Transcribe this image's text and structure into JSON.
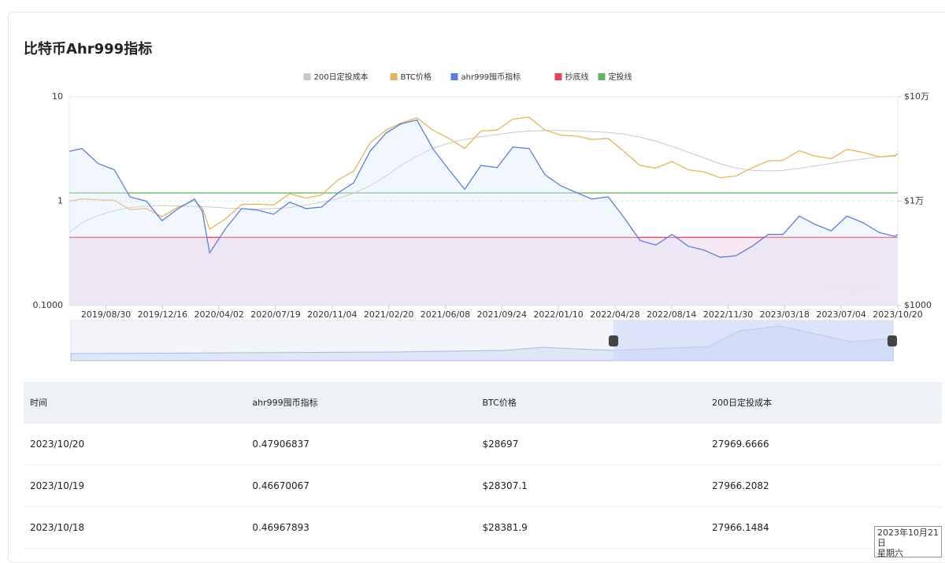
{
  "page_title": "比特币Ahr999指标",
  "chart_data": {
    "type": "line",
    "x": [
      "2019/06/21",
      "2019/07/15",
      "2019/08/15",
      "2019/09/15",
      "2019/10/15",
      "2019/11/15",
      "2019/12/15",
      "2020/01/15",
      "2020/02/15",
      "2020/03/01",
      "2020/03/15",
      "2020/04/15",
      "2020/05/15",
      "2020/06/15",
      "2020/07/15",
      "2020/08/15",
      "2020/09/15",
      "2020/10/15",
      "2020/11/15",
      "2020/12/15",
      "2021/01/15",
      "2021/02/15",
      "2021/03/15",
      "2021/04/15",
      "2021/05/15",
      "2021/06/15",
      "2021/07/15",
      "2021/08/15",
      "2021/09/15",
      "2021/10/15",
      "2021/11/15",
      "2021/12/15",
      "2022/01/15",
      "2022/02/15",
      "2022/03/15",
      "2022/04/15",
      "2022/05/15",
      "2022/06/15",
      "2022/07/15",
      "2022/08/15",
      "2022/09/15",
      "2022/10/15",
      "2022/11/15",
      "2022/12/15",
      "2023/01/15",
      "2023/02/15",
      "2023/03/15",
      "2023/04/15",
      "2023/05/15",
      "2023/06/15",
      "2023/07/15",
      "2023/08/15",
      "2023/09/15",
      "2023/10/15",
      "2023/10/20"
    ],
    "xticks": [
      "2019/08/30",
      "2019/12/16",
      "2020/04/02",
      "2020/07/19",
      "2020/11/04",
      "2021/02/20",
      "2021/06/08",
      "2021/09/24",
      "2022/01/10",
      "2022/04/28",
      "2022/08/14",
      "2022/11/30",
      "2023/03/18",
      "2023/07/04",
      "2023/10/20"
    ],
    "log_scale": true,
    "grid": true,
    "ylim": [
      0.1,
      10
    ],
    "yticks": [
      {
        "value": 0.1,
        "label": "0.1000"
      },
      1,
      10
    ],
    "y2lim": [
      1000,
      100000
    ],
    "y2ticks": [
      {
        "value": 1000,
        "label": "$1000"
      },
      {
        "value": 10000,
        "label": "$1万"
      },
      {
        "value": 100000,
        "label": "$10万"
      }
    ],
    "series": [
      {
        "name": "200日定投成本",
        "color": "#c8c8c8",
        "axis": "y2",
        "values": [
          5000,
          6200,
          7300,
          8100,
          8700,
          9000,
          9100,
          9000,
          8900,
          8900,
          8800,
          8600,
          8500,
          8400,
          8500,
          8700,
          9200,
          9800,
          10600,
          11900,
          14000,
          17500,
          22000,
          27000,
          32000,
          36000,
          39000,
          41500,
          43500,
          45500,
          47000,
          47500,
          47500,
          47000,
          46500,
          45500,
          44000,
          41000,
          37500,
          33500,
          29500,
          26000,
          22800,
          20800,
          19800,
          19500,
          19800,
          20600,
          21800,
          23000,
          24200,
          25400,
          26500,
          27700,
          27969.6666
        ]
      },
      {
        "name": "BTC价格",
        "color": "#e3b65c",
        "axis": "y2",
        "values": [
          10000,
          10500,
          10300,
          10200,
          8300,
          8500,
          7100,
          8800,
          10100,
          8600,
          5400,
          6800,
          9300,
          9400,
          9200,
          11800,
          10700,
          11500,
          16000,
          19400,
          36000,
          48000,
          56000,
          63000,
          48000,
          40000,
          32000,
          47000,
          48000,
          61000,
          64000,
          48000,
          43000,
          42000,
          39000,
          40000,
          30000,
          22000,
          20800,
          24000,
          20000,
          19100,
          16800,
          17400,
          20900,
          24300,
          24700,
          30400,
          27000,
          25600,
          31400,
          29300,
          26600,
          27100,
          28697
        ]
      },
      {
        "name": "ahr999囤币指标",
        "color": "#5b7fde",
        "values": [
          3.0,
          3.2,
          2.3,
          2.0,
          1.1,
          1.0,
          0.65,
          0.85,
          1.05,
          0.8,
          0.32,
          0.55,
          0.85,
          0.82,
          0.75,
          0.98,
          0.85,
          0.88,
          1.2,
          1.5,
          3.0,
          4.5,
          5.5,
          6.0,
          3.2,
          2.0,
          1.3,
          2.2,
          2.1,
          3.3,
          3.2,
          1.8,
          1.4,
          1.2,
          1.05,
          1.1,
          0.7,
          0.42,
          0.38,
          0.48,
          0.37,
          0.34,
          0.29,
          0.3,
          0.37,
          0.48,
          0.48,
          0.72,
          0.6,
          0.52,
          0.72,
          0.62,
          0.5,
          0.46,
          0.47906837
        ]
      },
      {
        "name": "抄底线",
        "color": "#e8435a",
        "value": 0.45
      },
      {
        "name": "定投线",
        "color": "#5cb85c",
        "value": 1.2
      }
    ]
  },
  "watermark": "coinglass",
  "table": {
    "header": [
      "时间",
      "ahr999囤币指标",
      "BTC价格",
      "200日定投成本"
    ],
    "rows": [
      [
        "2023/10/20",
        "0.47906837",
        "$28697",
        "27969.6666"
      ],
      [
        "2023/10/19",
        "0.46670067",
        "$28307.1",
        "27966.2082"
      ],
      [
        "2023/10/18",
        "0.46967893",
        "$28381.9",
        "27966.1484"
      ]
    ]
  },
  "tooltip": {
    "date": "2023年10月21日",
    "weekday": "星期六"
  }
}
